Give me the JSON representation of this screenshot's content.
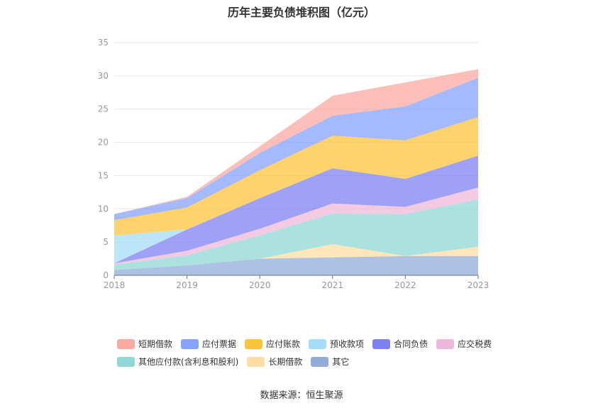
{
  "chart_data": {
    "type": "area",
    "title": "历年主要负债堆积图（亿元）",
    "x": [
      "2018",
      "2019",
      "2020",
      "2021",
      "2022",
      "2023"
    ],
    "ylim": [
      0,
      35
    ],
    "yticks": [
      "0",
      "5",
      "10",
      "15",
      "20",
      "25",
      "30",
      "35"
    ],
    "stacked": true,
    "grid": true,
    "legend_position": "bottom",
    "series": [
      {
        "name": "其它",
        "color": "#92acd9",
        "values": [
          0.8,
          1.5,
          2.5,
          2.7,
          2.9,
          2.9
        ]
      },
      {
        "name": "长期借款",
        "color": "#fedca3",
        "values": [
          0.0,
          0.0,
          0.0,
          2.0,
          0.0,
          1.4
        ]
      },
      {
        "name": "其他应付款(含利息和股利)",
        "color": "#8fd8d6",
        "values": [
          0.8,
          1.5,
          3.5,
          4.6,
          6.3,
          7.1
        ]
      },
      {
        "name": "应交税费",
        "color": "#eeb8d8",
        "values": [
          0.2,
          0.7,
          1.0,
          1.5,
          1.1,
          1.8
        ]
      },
      {
        "name": "合同负债",
        "color": "#7e81f2",
        "values": [
          0.0,
          3.2,
          4.6,
          5.3,
          4.2,
          4.8
        ]
      },
      {
        "name": "预收款项",
        "color": "#a6dcf6",
        "values": [
          4.2,
          0.0,
          0.0,
          0.0,
          0.0,
          0.0
        ]
      },
      {
        "name": "应付账款",
        "color": "#fdc33c",
        "values": [
          2.3,
          3.3,
          4.2,
          4.9,
          5.8,
          5.8
        ]
      },
      {
        "name": "应付票据",
        "color": "#86a2fd",
        "values": [
          0.9,
          1.4,
          2.6,
          3.0,
          5.1,
          5.9
        ]
      },
      {
        "name": "短期借款",
        "color": "#fba8a0",
        "values": [
          0.0,
          0.2,
          1.0,
          3.0,
          3.6,
          1.3
        ]
      }
    ],
    "legend_order": [
      [
        "短期借款",
        "应付票据",
        "应付账款",
        "预收款项",
        "合同负债",
        "应交税费"
      ],
      [
        "其他应付款(含利息和股利)",
        "长期借款",
        "其它"
      ]
    ]
  },
  "legend": {
    "row1": [
      {
        "label": "短期借款",
        "color": "#fba8a0"
      },
      {
        "label": "应付票据",
        "color": "#86a2fd"
      },
      {
        "label": "应付账款",
        "color": "#fdc33c"
      },
      {
        "label": "预收款项",
        "color": "#a6dcf6"
      },
      {
        "label": "合同负债",
        "color": "#7e81f2"
      },
      {
        "label": "应交税费",
        "color": "#eeb8d8"
      }
    ],
    "row2": [
      {
        "label": "其他应付款(含利息和股利)",
        "color": "#8fd8d6"
      },
      {
        "label": "长期借款",
        "color": "#fedca3"
      },
      {
        "label": "其它",
        "color": "#92acd9"
      }
    ]
  },
  "source": "数据来源：恒生聚源"
}
